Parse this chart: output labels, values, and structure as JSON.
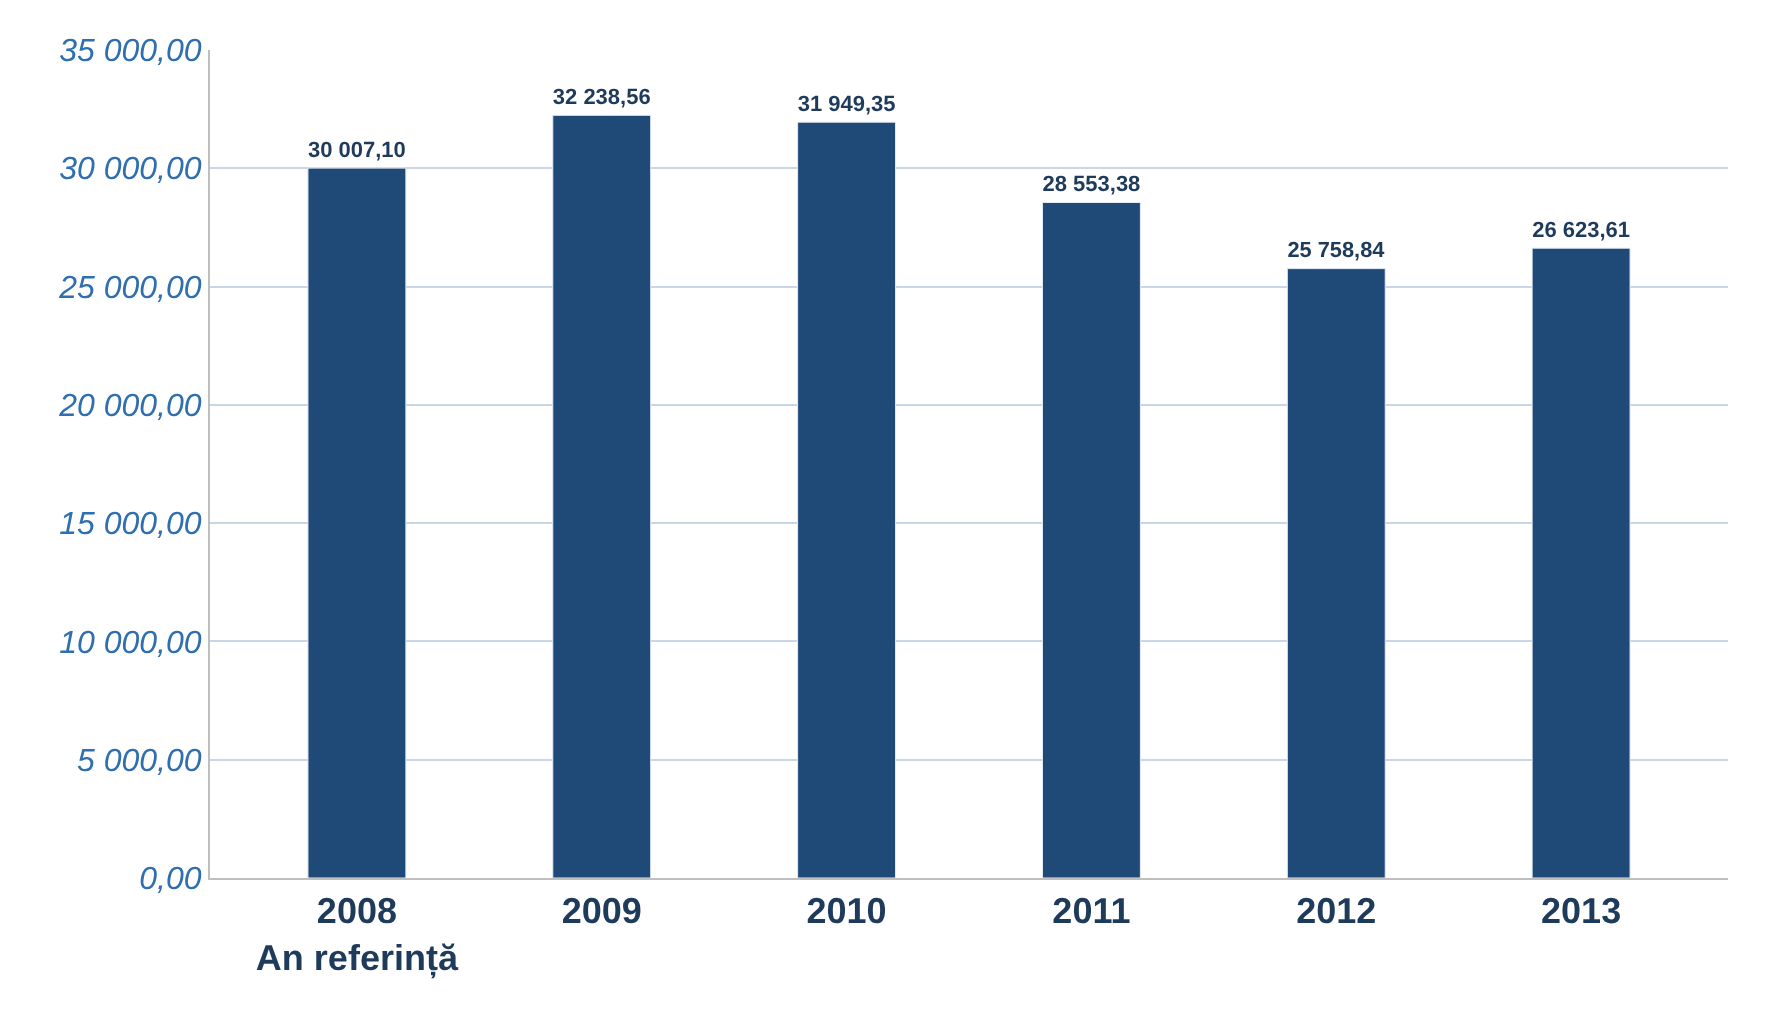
{
  "chart_data": {
    "type": "bar",
    "categories": [
      "2008\nAn referință",
      "2009",
      "2010",
      "2011",
      "2012",
      "2013"
    ],
    "values": [
      30007.1,
      32238.56,
      31949.35,
      28553.38,
      25758.84,
      26623.61
    ],
    "value_labels": [
      "30 007,10",
      "32 238,56",
      "31 949,35",
      "28 553,38",
      "25 758,84",
      "26 623,61"
    ],
    "color": "#1f4a78",
    "ylim": [
      0,
      35000
    ],
    "yticks": [
      {
        "value": 0,
        "label": "0,00"
      },
      {
        "value": 5000,
        "label": "5 000,00"
      },
      {
        "value": 10000,
        "label": "10 000,00"
      },
      {
        "value": 15000,
        "label": "15 000,00"
      },
      {
        "value": 20000,
        "label": "20 000,00"
      },
      {
        "value": 25000,
        "label": "25 000,00"
      },
      {
        "value": 30000,
        "label": "30 000,00"
      },
      {
        "value": 35000,
        "label": "35 000,00"
      }
    ],
    "grid": "y"
  }
}
